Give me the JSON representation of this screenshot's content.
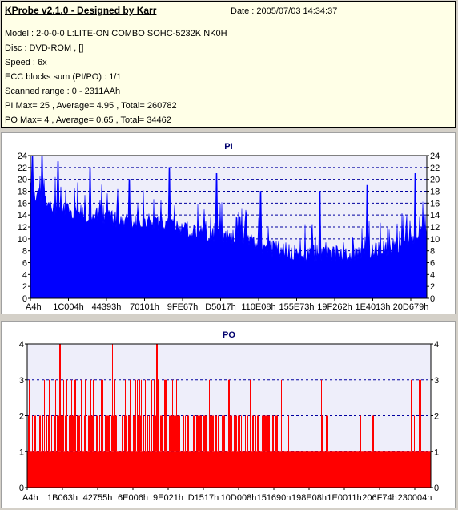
{
  "info": {
    "title": "KProbe v2.1.0 - Designed by Karr",
    "date": "Date : 2005/07/03 14:34:37",
    "lines": [
      "Model : 2-0-0-0 L:LITE-ON COMBO SOHC-5232K NK0H",
      "Disc : DVD-ROM ,  []",
      "Speed : 6x",
      "ECC blocks sum (PI/PO) : 1/1",
      "Scanned range : 0 - 2311AAh",
      "PI Max= 25 , Average= 4.95 , Total= 260782",
      "PO Max= 4 , Average= 0.65 , Total= 34462"
    ]
  },
  "chart_data": [
    {
      "type": "bar",
      "title": "PI",
      "color": "#0000ff",
      "ylim": [
        0,
        24
      ],
      "yticks": [
        0,
        2,
        4,
        6,
        8,
        10,
        12,
        14,
        16,
        18,
        20,
        22,
        24
      ],
      "x_tick_labels": [
        "A4h",
        "1C004h",
        "44393h",
        "70101h",
        "9FE67h",
        "D5017h",
        "110E08h",
        "155E73h",
        "19F262h",
        "1E4013h",
        "20D679h"
      ],
      "grid": true,
      "envelope_profile": [
        {
          "pos": 0.0,
          "value": 20
        },
        {
          "pos": 0.05,
          "value": 17
        },
        {
          "pos": 0.1,
          "value": 16
        },
        {
          "pos": 0.2,
          "value": 15
        },
        {
          "pos": 0.3,
          "value": 14
        },
        {
          "pos": 0.4,
          "value": 13
        },
        {
          "pos": 0.5,
          "value": 12
        },
        {
          "pos": 0.6,
          "value": 10
        },
        {
          "pos": 0.7,
          "value": 9
        },
        {
          "pos": 0.8,
          "value": 9
        },
        {
          "pos": 0.9,
          "value": 10
        },
        {
          "pos": 0.96,
          "value": 11
        },
        {
          "pos": 1.0,
          "value": 13
        }
      ],
      "peaks": [
        {
          "pos": 0.005,
          "value": 25
        },
        {
          "pos": 0.03,
          "value": 24
        },
        {
          "pos": 0.07,
          "value": 23
        },
        {
          "pos": 0.15,
          "value": 22
        },
        {
          "pos": 0.25,
          "value": 20
        },
        {
          "pos": 0.35,
          "value": 22
        },
        {
          "pos": 0.47,
          "value": 21
        },
        {
          "pos": 0.58,
          "value": 18
        },
        {
          "pos": 0.73,
          "value": 18
        },
        {
          "pos": 0.85,
          "value": 19
        },
        {
          "pos": 0.97,
          "value": 21
        }
      ]
    },
    {
      "type": "bar",
      "title": "PO",
      "color": "#ff0000",
      "ylim": [
        0,
        4
      ],
      "yticks": [
        0,
        1,
        2,
        3,
        4
      ],
      "x_tick_labels": [
        "A4h",
        "1B063h",
        "42755h",
        "6E006h",
        "9E021h",
        "D1517h",
        "10D008h",
        "151690h",
        "198E08h",
        "1E0011h",
        "206F74h",
        "230004h"
      ],
      "grid": true,
      "baseline_value": 1,
      "dense_2_until": 0.62,
      "dense_3_until": 0.35,
      "peaks": [
        {
          "pos": 0.08,
          "value": 4
        },
        {
          "pos": 0.21,
          "value": 4
        },
        {
          "pos": 0.32,
          "value": 4
        }
      ]
    }
  ]
}
